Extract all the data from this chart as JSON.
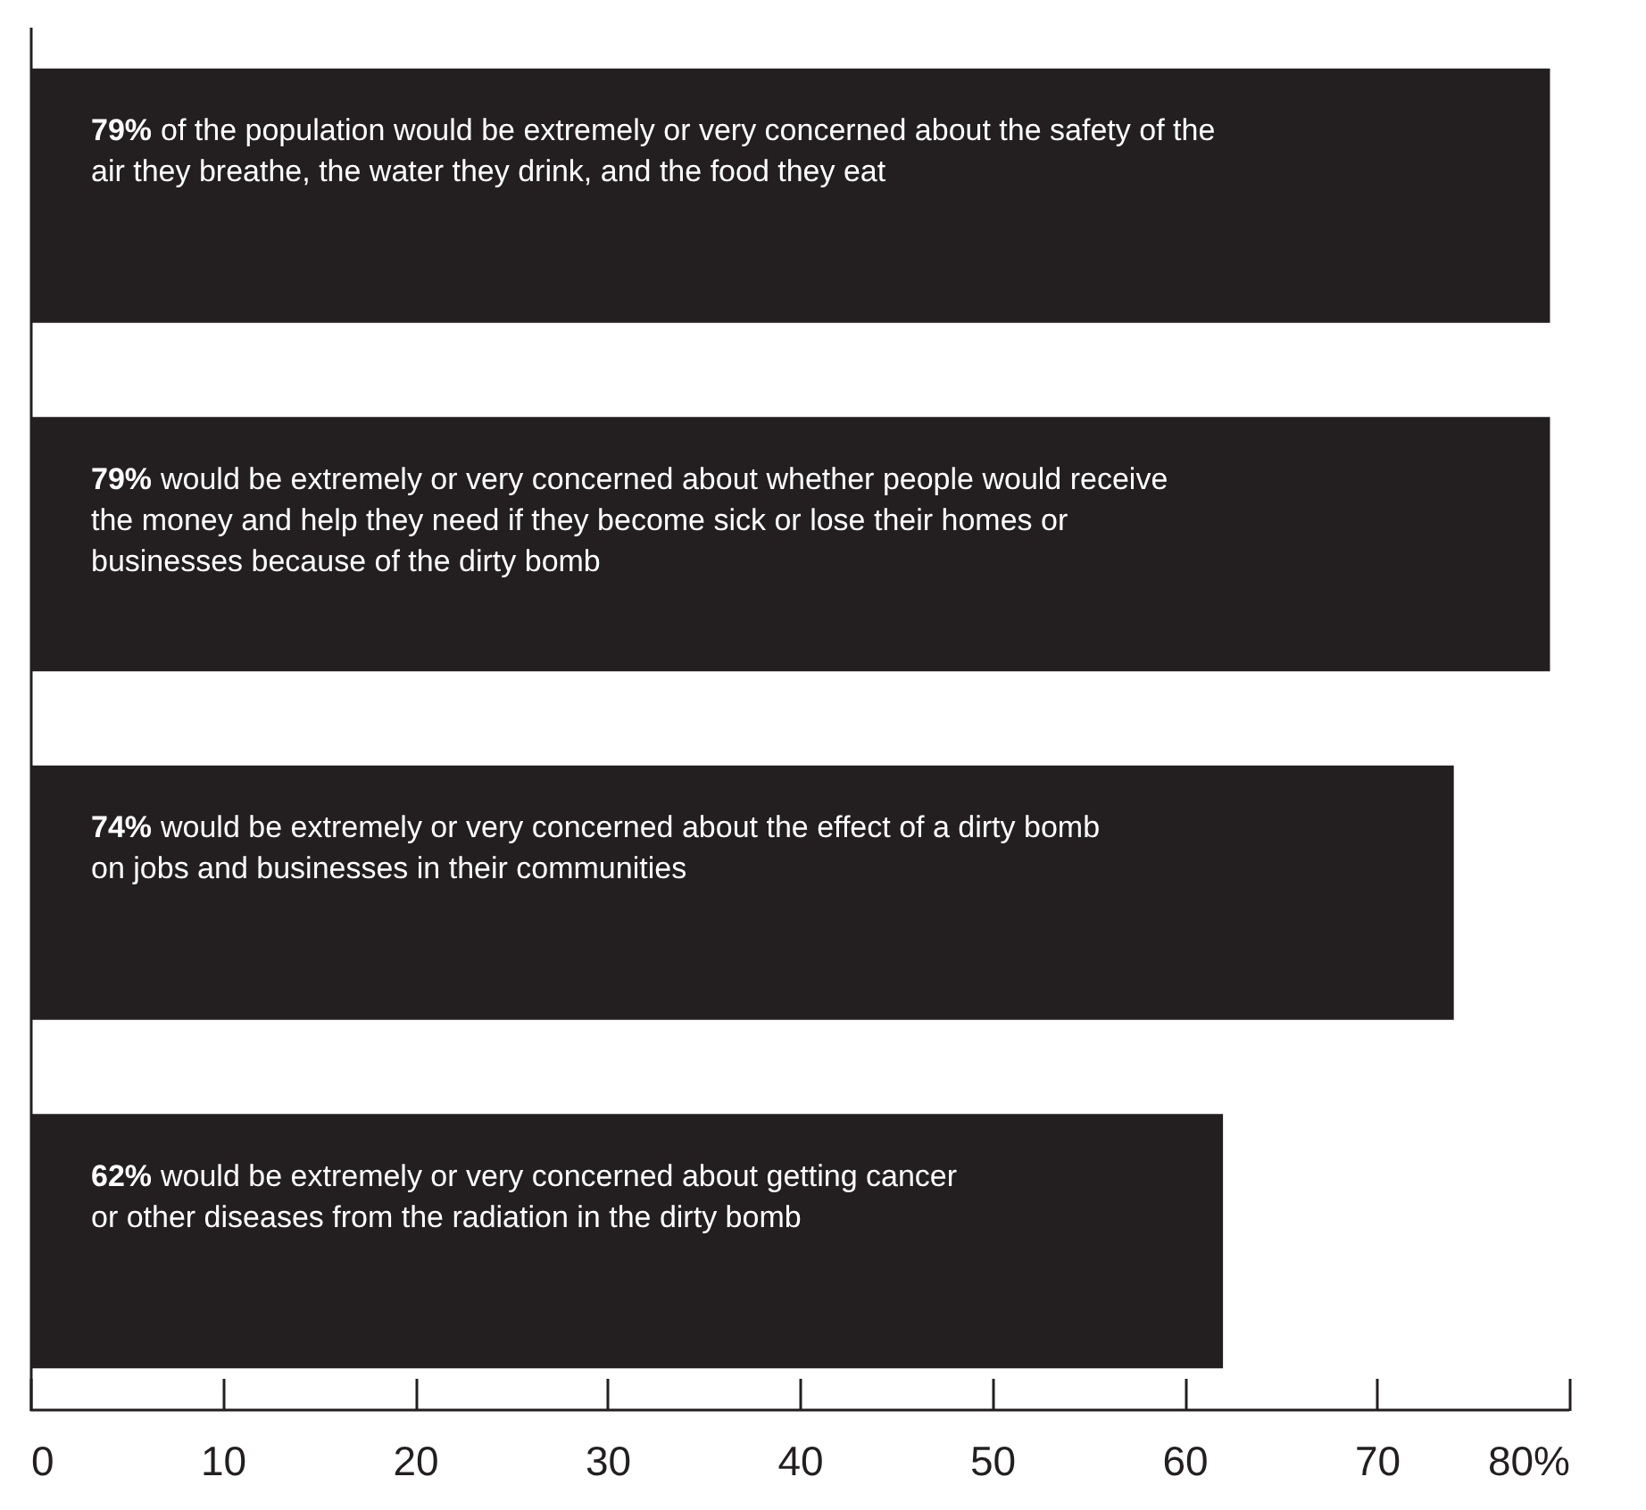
{
  "chart_data": {
    "type": "bar",
    "orientation": "horizontal",
    "categories": [
      "of the population would be extremely or very concerned about the safety of the\nair they breathe, the water they drink, and the food they eat",
      "would be extremely or very concerned about whether people would receive\nthe money and help they need if they become sick or lose their homes or\nbusinesses because of the dirty bomb",
      "would be extremely or very concerned about the effect of a dirty bomb\non jobs and businesses in their communities",
      "would be extremely or very concerned about getting cancer\nor other diseases from the radiation in the dirty bomb"
    ],
    "values": [
      79,
      79,
      74,
      62
    ],
    "value_labels": [
      "79%",
      "79%",
      "74%",
      "62%"
    ],
    "color": "#231f20",
    "xlim": [
      0,
      80
    ],
    "xticks": [
      0,
      10,
      20,
      30,
      40,
      50,
      60,
      70,
      {
        "value": 80,
        "label": "80%"
      }
    ],
    "tick_labels": "x",
    "grid": false
  }
}
